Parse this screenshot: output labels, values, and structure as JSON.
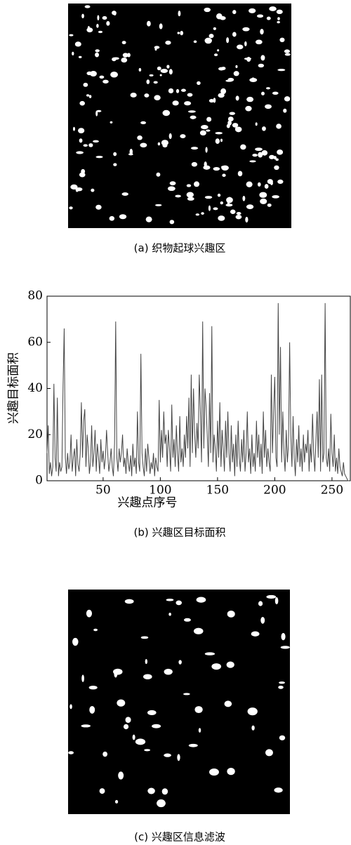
{
  "captions": [
    "(a) 织物起球兴趣区",
    "(b) 兴趣区目标面积",
    "(c) 兴趣区信息滤波"
  ],
  "chart_data": {
    "type": "line",
    "x_label": "兴趣点序号",
    "y_label": "兴趣目标面积",
    "x": [
      1,
      2,
      3,
      4,
      5,
      6,
      7,
      8,
      9,
      10,
      11,
      12,
      13,
      14,
      15,
      16,
      17,
      18,
      19,
      20,
      21,
      22,
      23,
      24,
      25,
      26,
      27,
      28,
      29,
      30,
      31,
      32,
      33,
      34,
      35,
      36,
      37,
      38,
      39,
      40,
      41,
      42,
      43,
      44,
      45,
      46,
      47,
      48,
      49,
      50,
      51,
      52,
      53,
      54,
      55,
      56,
      57,
      58,
      59,
      60,
      61,
      62,
      63,
      64,
      65,
      66,
      67,
      68,
      69,
      70,
      71,
      72,
      73,
      74,
      75,
      76,
      77,
      78,
      79,
      80,
      81,
      82,
      83,
      84,
      85,
      86,
      87,
      88,
      89,
      90,
      91,
      92,
      93,
      94,
      95,
      96,
      97,
      98,
      99,
      100,
      101,
      102,
      103,
      104,
      105,
      106,
      107,
      108,
      109,
      110,
      111,
      112,
      113,
      114,
      115,
      116,
      117,
      118,
      119,
      120,
      121,
      122,
      123,
      124,
      125,
      126,
      127,
      128,
      129,
      130,
      131,
      132,
      133,
      134,
      135,
      136,
      137,
      138,
      139,
      140,
      141,
      142,
      143,
      144,
      145,
      146,
      147,
      148,
      149,
      150,
      151,
      152,
      153,
      154,
      155,
      156,
      157,
      158,
      159,
      160,
      161,
      162,
      163,
      164,
      165,
      166,
      167,
      168,
      169,
      170,
      171,
      172,
      173,
      174,
      175,
      176,
      177,
      178,
      179,
      180,
      181,
      182,
      183,
      184,
      185,
      186,
      187,
      188,
      189,
      190,
      191,
      192,
      193,
      194,
      195,
      196,
      197,
      198,
      199,
      200,
      201,
      202,
      203,
      204,
      205,
      206,
      207,
      208,
      209,
      210,
      211,
      212,
      213,
      214,
      215,
      216,
      217,
      218,
      219,
      220,
      221,
      222,
      223,
      224,
      225,
      226,
      227,
      228,
      229,
      230,
      231,
      232,
      233,
      234,
      235,
      236,
      237,
      238,
      239,
      240,
      241,
      242,
      243,
      244,
      245,
      246,
      247,
      248,
      249,
      250,
      251,
      252,
      253,
      254,
      255,
      256,
      257,
      258,
      259,
      260,
      261,
      262,
      263,
      264,
      265
    ],
    "series": [
      {
        "color": "#444444",
        "values": [
          12,
          24,
          3,
          8,
          2,
          6,
          42,
          10,
          4,
          36,
          2,
          8,
          4,
          6,
          41,
          66,
          10,
          3,
          12,
          5,
          8,
          20,
          4,
          10,
          14,
          2,
          18,
          7,
          4,
          12,
          34,
          10,
          26,
          31,
          6,
          20,
          14,
          3,
          8,
          24,
          6,
          12,
          22,
          4,
          16,
          10,
          3,
          18,
          8,
          13,
          5,
          10,
          22,
          12,
          4,
          8,
          14,
          6,
          2,
          16,
          69,
          10,
          4,
          14,
          8,
          12,
          20,
          6,
          10,
          3,
          14,
          8,
          4,
          11,
          2,
          16,
          6,
          10,
          3,
          30,
          8,
          4,
          55,
          12,
          6,
          2,
          14,
          4,
          16,
          10,
          3,
          8,
          5,
          12,
          2,
          10,
          6,
          4,
          35,
          8,
          22,
          10,
          30,
          16,
          20,
          6,
          22,
          14,
          4,
          33,
          10,
          18,
          6,
          24,
          12,
          4,
          28,
          8,
          14,
          6,
          20,
          10,
          28,
          14,
          36,
          6,
          46,
          12,
          40,
          20,
          10,
          25,
          14,
          46,
          30,
          8,
          69,
          14,
          40,
          32,
          20,
          6,
          38,
          12,
          67,
          8,
          20,
          14,
          4,
          26,
          10,
          34,
          6,
          22,
          14,
          4,
          26,
          10,
          30,
          12,
          4,
          24,
          8,
          16,
          2,
          20,
          6,
          26,
          10,
          4,
          18,
          8,
          22,
          4,
          12,
          30,
          8,
          14,
          3,
          20,
          6,
          12,
          4,
          26,
          10,
          20,
          6,
          16,
          3,
          30,
          10,
          22,
          6,
          14,
          8,
          4,
          46,
          12,
          30,
          45,
          10,
          6,
          77,
          20,
          58,
          8,
          30,
          12,
          4,
          22,
          8,
          16,
          60,
          20,
          6,
          28,
          10,
          2,
          18,
          8,
          24,
          6,
          14,
          4,
          20,
          8,
          16,
          12,
          22,
          4,
          16,
          8,
          29,
          12,
          4,
          18,
          30,
          10,
          44,
          4,
          46,
          8,
          12,
          77,
          10,
          6,
          14,
          4,
          29,
          12,
          6,
          20,
          4,
          10,
          3,
          14,
          6,
          4,
          2,
          8,
          3,
          2,
          1,
          0,
          0
        ]
      }
    ],
    "xlim": [
      1,
      266
    ],
    "ylim": [
      0,
      80
    ],
    "xticks": [
      50,
      100,
      150,
      200,
      250
    ],
    "yticks": [
      0,
      20,
      40,
      60,
      80
    ]
  }
}
